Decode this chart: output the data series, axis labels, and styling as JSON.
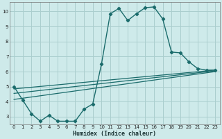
{
  "xlabel": "Humidex (Indice chaleur)",
  "bg_color": "#ceeaea",
  "grid_color": "#aacece",
  "line_color": "#1a6b6b",
  "xlim": [
    -0.5,
    23.5
  ],
  "ylim": [
    2.5,
    10.6
  ],
  "xticks": [
    0,
    1,
    2,
    3,
    4,
    5,
    6,
    7,
    8,
    9,
    10,
    11,
    12,
    13,
    14,
    15,
    16,
    17,
    18,
    19,
    20,
    21,
    22,
    23
  ],
  "yticks": [
    3,
    4,
    5,
    6,
    7,
    8,
    9,
    10
  ],
  "main_x": [
    0,
    1,
    2,
    3,
    4,
    5,
    6,
    7,
    8,
    9,
    10,
    11,
    12,
    13,
    14,
    15,
    16,
    17,
    18,
    19,
    20,
    21,
    22,
    23
  ],
  "main_y": [
    5.0,
    4.1,
    3.2,
    2.7,
    3.1,
    2.7,
    2.7,
    2.7,
    3.5,
    3.85,
    6.5,
    9.85,
    10.2,
    9.4,
    9.85,
    10.25,
    10.3,
    9.5,
    7.3,
    7.25,
    6.65,
    6.2,
    6.1,
    6.1
  ],
  "trend1_x": [
    0,
    23
  ],
  "trend1_y": [
    4.85,
    6.1
  ],
  "trend2_x": [
    0,
    23
  ],
  "trend2_y": [
    4.55,
    6.05
  ],
  "trend3_x": [
    0,
    23
  ],
  "trend3_y": [
    4.15,
    6.0
  ]
}
